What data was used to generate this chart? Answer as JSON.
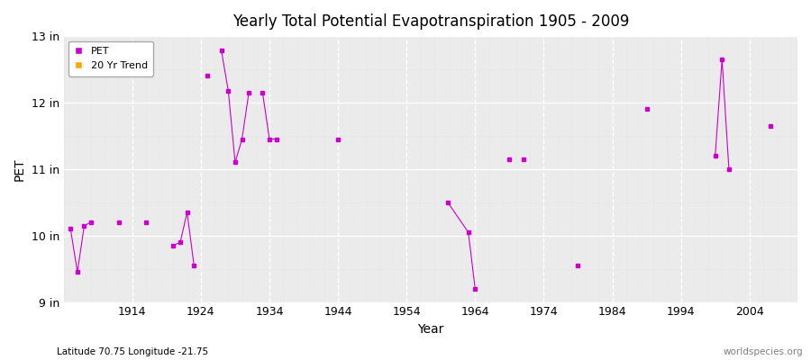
{
  "title": "Yearly Total Potential Evapotranspiration 1905 - 2009",
  "xlabel": "Year",
  "ylabel": "PET",
  "footnote_left": "Latitude 70.75 Longitude -21.75",
  "footnote_right": "worldspecies.org",
  "ylim": [
    9,
    13
  ],
  "yticks": [
    9,
    10,
    11,
    12,
    13
  ],
  "ytick_labels": [
    "9 in",
    "10 in",
    "11 in",
    "12 in",
    "13 in"
  ],
  "xlim": [
    1904,
    2011
  ],
  "xticks": [
    1914,
    1924,
    1934,
    1944,
    1954,
    1964,
    1974,
    1984,
    1994,
    2004
  ],
  "pet_color": "#CC00CC",
  "trend_color": "#FFA500",
  "bg_color": "#FFFFFF",
  "plot_bg_color": "#EBEBEB",
  "grid_major_color": "#FFFFFF",
  "grid_minor_color": "#DDDDDD",
  "connected_segments": [
    [
      [
        1905,
        10.1
      ],
      [
        1906,
        9.45
      ],
      [
        1907,
        10.15
      ],
      [
        1908,
        10.2
      ]
    ],
    [
      [
        1912,
        10.2
      ]
    ],
    [
      [
        1916,
        10.2
      ]
    ],
    [
      [
        1920,
        9.85
      ],
      [
        1921,
        9.9
      ],
      [
        1922,
        10.35
      ],
      [
        1923,
        9.55
      ]
    ],
    [
      [
        1925,
        12.4
      ]
    ],
    [
      [
        1927,
        12.78
      ],
      [
        1928,
        12.18
      ],
      [
        1929,
        11.1
      ],
      [
        1930,
        11.45
      ],
      [
        1931,
        12.15
      ]
    ],
    [
      [
        1933,
        12.15
      ],
      [
        1934,
        11.45
      ],
      [
        1935,
        11.45
      ]
    ],
    [
      [
        1944,
        11.45
      ]
    ],
    [
      [
        1960,
        10.5
      ],
      [
        1963,
        10.05
      ],
      [
        1964,
        9.2
      ]
    ],
    [
      [
        1969,
        11.15
      ]
    ],
    [
      [
        1971,
        11.15
      ]
    ],
    [
      [
        1979,
        9.55
      ]
    ],
    [
      [
        1989,
        11.9
      ]
    ],
    [
      [
        1999,
        11.2
      ],
      [
        2000,
        12.65
      ],
      [
        2001,
        11.0
      ]
    ],
    [
      [
        2007,
        11.65
      ]
    ]
  ]
}
